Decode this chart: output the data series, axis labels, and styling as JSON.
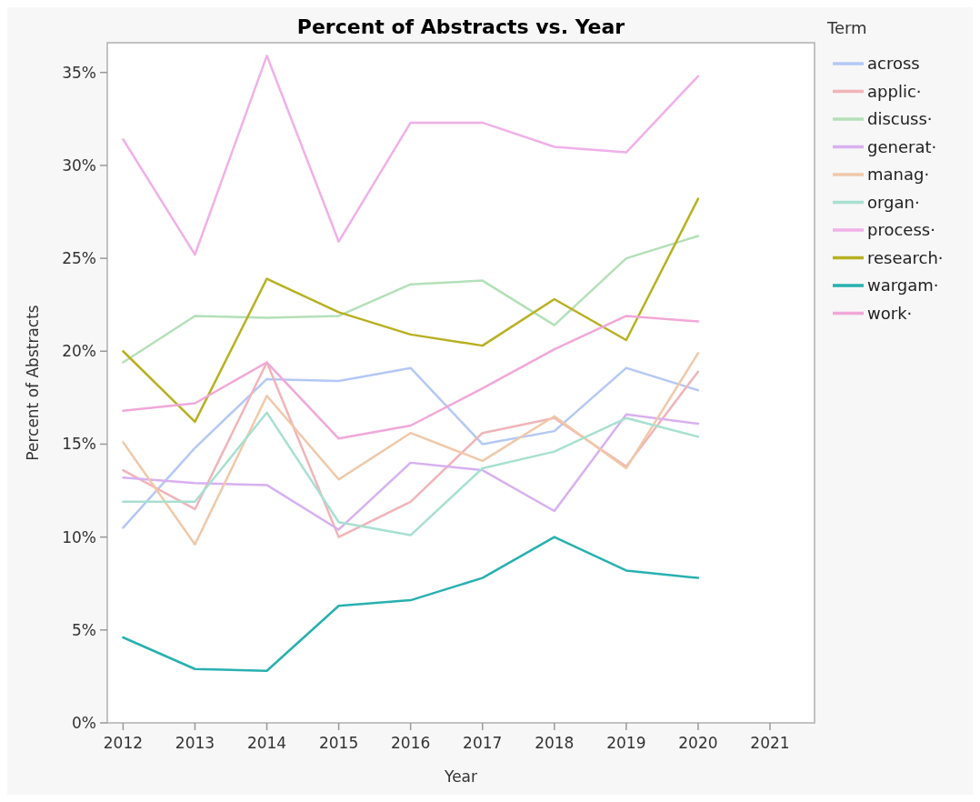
{
  "chart_data": {
    "type": "line",
    "title": "Percent of Abstracts vs. Year",
    "xlabel": "Year",
    "ylabel": "Percent of Abstracts",
    "legend_title": "Term",
    "x": [
      2012,
      2013,
      2014,
      2015,
      2016,
      2017,
      2018,
      2019,
      2020
    ],
    "xlim": [
      2011.78,
      2021.62
    ],
    "xticks": [
      2012,
      2013,
      2014,
      2015,
      2016,
      2017,
      2018,
      2019,
      2020,
      2021
    ],
    "ylim": [
      0,
      36.6
    ],
    "yticks": [
      {
        "value": 0,
        "label": "0%"
      },
      {
        "value": 5,
        "label": "5%"
      },
      {
        "value": 10,
        "label": "10%"
      },
      {
        "value": 15,
        "label": "15%"
      },
      {
        "value": 20,
        "label": "20%"
      },
      {
        "value": 25,
        "label": "25%"
      },
      {
        "value": 30,
        "label": "30%"
      },
      {
        "value": 35,
        "label": "35%"
      }
    ],
    "grid": false,
    "legend": "right",
    "marker": "none",
    "line_style": "solid",
    "series": [
      {
        "name": "across",
        "color": "#b4c8f5",
        "values": [
          10.5,
          14.8,
          18.5,
          18.4,
          19.1,
          15.0,
          15.7,
          19.1,
          17.9
        ]
      },
      {
        "name": "applic·",
        "color": "#f0b4b8",
        "values": [
          13.6,
          11.5,
          19.4,
          10.0,
          11.9,
          15.6,
          16.4,
          13.8,
          18.9
        ]
      },
      {
        "name": "discuss·",
        "color": "#b4e0b8",
        "values": [
          19.4,
          21.9,
          21.8,
          21.9,
          23.6,
          23.8,
          21.4,
          25.0,
          26.2
        ]
      },
      {
        "name": "generat·",
        "color": "#d8b0f0",
        "values": [
          13.2,
          12.9,
          12.8,
          10.4,
          14.0,
          13.6,
          11.4,
          16.6,
          16.1
        ]
      },
      {
        "name": "manag·",
        "color": "#f0c8a8",
        "values": [
          15.1,
          9.6,
          17.6,
          13.1,
          15.6,
          14.1,
          16.5,
          13.7,
          19.9
        ]
      },
      {
        "name": "organ·",
        "color": "#a8e0d0",
        "values": [
          11.9,
          11.9,
          16.7,
          10.8,
          10.1,
          13.7,
          14.6,
          16.4,
          15.4
        ]
      },
      {
        "name": "process·",
        "color": "#f0b0e8",
        "values": [
          31.4,
          25.2,
          35.9,
          25.9,
          32.3,
          32.3,
          31.0,
          30.7,
          34.8
        ]
      },
      {
        "name": "research·",
        "color": "#b8b020",
        "values": [
          20.0,
          16.2,
          23.9,
          22.1,
          20.9,
          20.3,
          22.8,
          20.6,
          28.2
        ]
      },
      {
        "name": "wargam·",
        "color": "#28b0b0",
        "values": [
          4.6,
          2.9,
          2.8,
          6.3,
          6.6,
          7.8,
          10.0,
          8.2,
          7.8
        ]
      },
      {
        "name": "work·",
        "color": "#f0a8d8",
        "values": [
          16.8,
          17.2,
          19.4,
          15.3,
          16.0,
          18.0,
          20.1,
          21.9,
          21.6
        ]
      }
    ]
  }
}
